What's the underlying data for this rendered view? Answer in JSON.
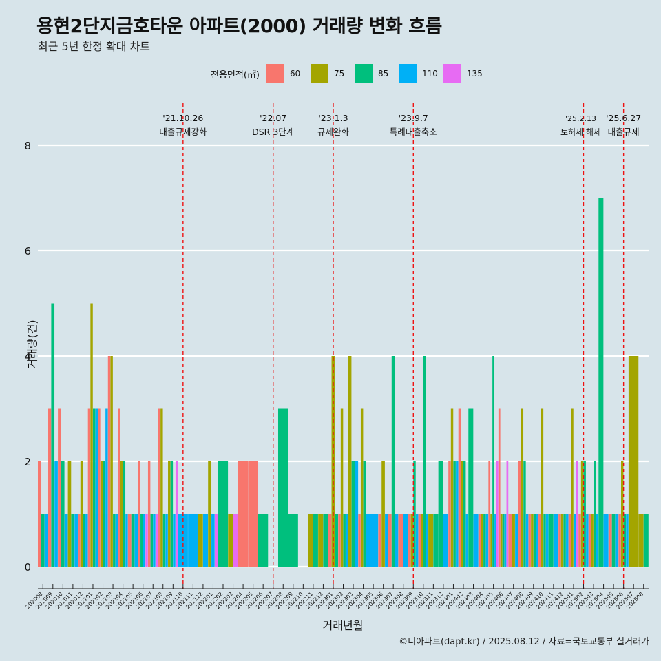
{
  "title": "용현2단지금호타운 아파트(2000) 거래량 변화 흐름",
  "subtitle": "최근 5년 한정 확대 차트",
  "caption": "©디아파트(dapt.kr) / 2025.08.12 / 자료=국토교통부 실거래가",
  "colors": {
    "60": "#f8766d",
    "75": "#a3a500",
    "85": "#00bf7d",
    "110": "#00b0f6",
    "135": "#e76bf3"
  },
  "chart_data": {
    "type": "bar",
    "xlabel": "거래년월",
    "ylabel": "거래량(건)",
    "ylim": [
      0,
      8.5
    ],
    "yticks": [
      0,
      2,
      4,
      6,
      8
    ],
    "legend": {
      "title": "전용면적(㎡)",
      "position": "top",
      "entries": [
        "60",
        "75",
        "85",
        "110",
        "135"
      ]
    },
    "grid": true,
    "categories": [
      "202008",
      "202009",
      "202010",
      "202011",
      "202012",
      "202101",
      "202102",
      "202103",
      "202104",
      "202105",
      "202106",
      "202107",
      "202108",
      "202109",
      "202110",
      "202111",
      "202112",
      "202201",
      "202202",
      "202203",
      "202204",
      "202205",
      "202206",
      "202207",
      "202208",
      "202209",
      "202210",
      "202211",
      "202212",
      "202301",
      "202302",
      "202303",
      "202304",
      "202305",
      "202306",
      "202307",
      "202308",
      "202309",
      "202310",
      "202311",
      "202312",
      "202401",
      "202402",
      "202403",
      "202404",
      "202405",
      "202406",
      "202407",
      "202408",
      "202409",
      "202410",
      "202411",
      "202412",
      "202501",
      "202502",
      "202503",
      "202504",
      "202505",
      "202506",
      "202507",
      "202508"
    ],
    "series": [
      {
        "name": "60",
        "values": [
          2,
          3,
          3,
          0,
          1,
          3,
          3,
          4,
          3,
          1,
          2,
          2,
          3,
          0,
          0,
          0,
          0,
          0,
          0,
          0,
          2,
          2,
          0,
          0,
          0,
          0,
          0,
          0,
          0,
          1,
          1,
          0,
          1,
          0,
          1,
          1,
          1,
          1,
          1,
          0,
          0,
          2,
          3,
          0,
          1,
          2,
          3,
          1,
          2,
          1,
          1,
          0,
          1,
          1,
          1,
          1,
          0,
          1,
          1,
          0,
          0
        ]
      },
      {
        "name": "75",
        "values": [
          0,
          0,
          0,
          2,
          2,
          5,
          2,
          4,
          2,
          0,
          0,
          0,
          3,
          2,
          0,
          0,
          1,
          2,
          0,
          1,
          0,
          0,
          0,
          0,
          0,
          0,
          0,
          1,
          1,
          4,
          3,
          4,
          3,
          0,
          2,
          0,
          0,
          1,
          1,
          1,
          0,
          3,
          2,
          0,
          1,
          1,
          1,
          1,
          3,
          1,
          3,
          0,
          1,
          3,
          2,
          1,
          0,
          0,
          2,
          4,
          1
        ]
      },
      {
        "name": "85",
        "values": [
          1,
          5,
          2,
          1,
          1,
          3,
          2,
          1,
          2,
          1,
          1,
          1,
          1,
          2,
          0,
          0,
          0,
          0,
          2,
          0,
          0,
          0,
          1,
          0,
          3,
          1,
          0,
          1,
          1,
          1,
          1,
          2,
          2,
          0,
          0,
          4,
          0,
          2,
          4,
          1,
          2,
          2,
          2,
          3,
          1,
          4,
          1,
          0,
          2,
          1,
          1,
          1,
          1,
          0,
          2,
          2,
          7,
          1,
          1,
          0,
          1
        ]
      },
      {
        "name": "110",
        "values": [
          1,
          2,
          1,
          1,
          1,
          3,
          3,
          1,
          1,
          1,
          1,
          1,
          1,
          1,
          1,
          1,
          1,
          1,
          0,
          0,
          0,
          0,
          0,
          0,
          0,
          0,
          0,
          0,
          0,
          0,
          1,
          2,
          1,
          1,
          1,
          1,
          1,
          1,
          1,
          0,
          1,
          2,
          1,
          1,
          1,
          1,
          1,
          1,
          1,
          1,
          1,
          1,
          1,
          1,
          1,
          1,
          1,
          1,
          1,
          0,
          0
        ]
      },
      {
        "name": "135",
        "values": [
          0,
          0,
          0,
          0,
          0,
          0,
          0,
          0,
          0,
          0,
          1,
          1,
          0,
          2,
          0,
          0,
          0,
          1,
          0,
          1,
          0,
          0,
          0,
          0,
          0,
          0,
          0,
          0,
          0,
          0,
          0,
          0,
          0,
          0,
          0,
          0,
          0,
          0,
          0,
          0,
          0,
          0,
          0,
          0,
          0,
          2,
          2,
          0,
          0,
          0,
          0,
          0,
          0,
          2,
          0,
          0,
          0,
          0,
          0,
          0,
          0
        ]
      }
    ],
    "events": [
      {
        "at": 14,
        "date": "'21.10.26",
        "label": "대출규제강화"
      },
      {
        "at": 23,
        "date": "'22.07",
        "label": "DSR 3단계"
      },
      {
        "at": 29,
        "date": "'23.1.3",
        "label": "규제완화"
      },
      {
        "at": 37,
        "date": "'23.9.7",
        "label": "특례대출축소"
      },
      {
        "at": 54,
        "date": "'25.2.13",
        "label": "토허제 해제"
      },
      {
        "at": 58,
        "date": "'25.6.27",
        "label": "대출규제"
      }
    ]
  }
}
